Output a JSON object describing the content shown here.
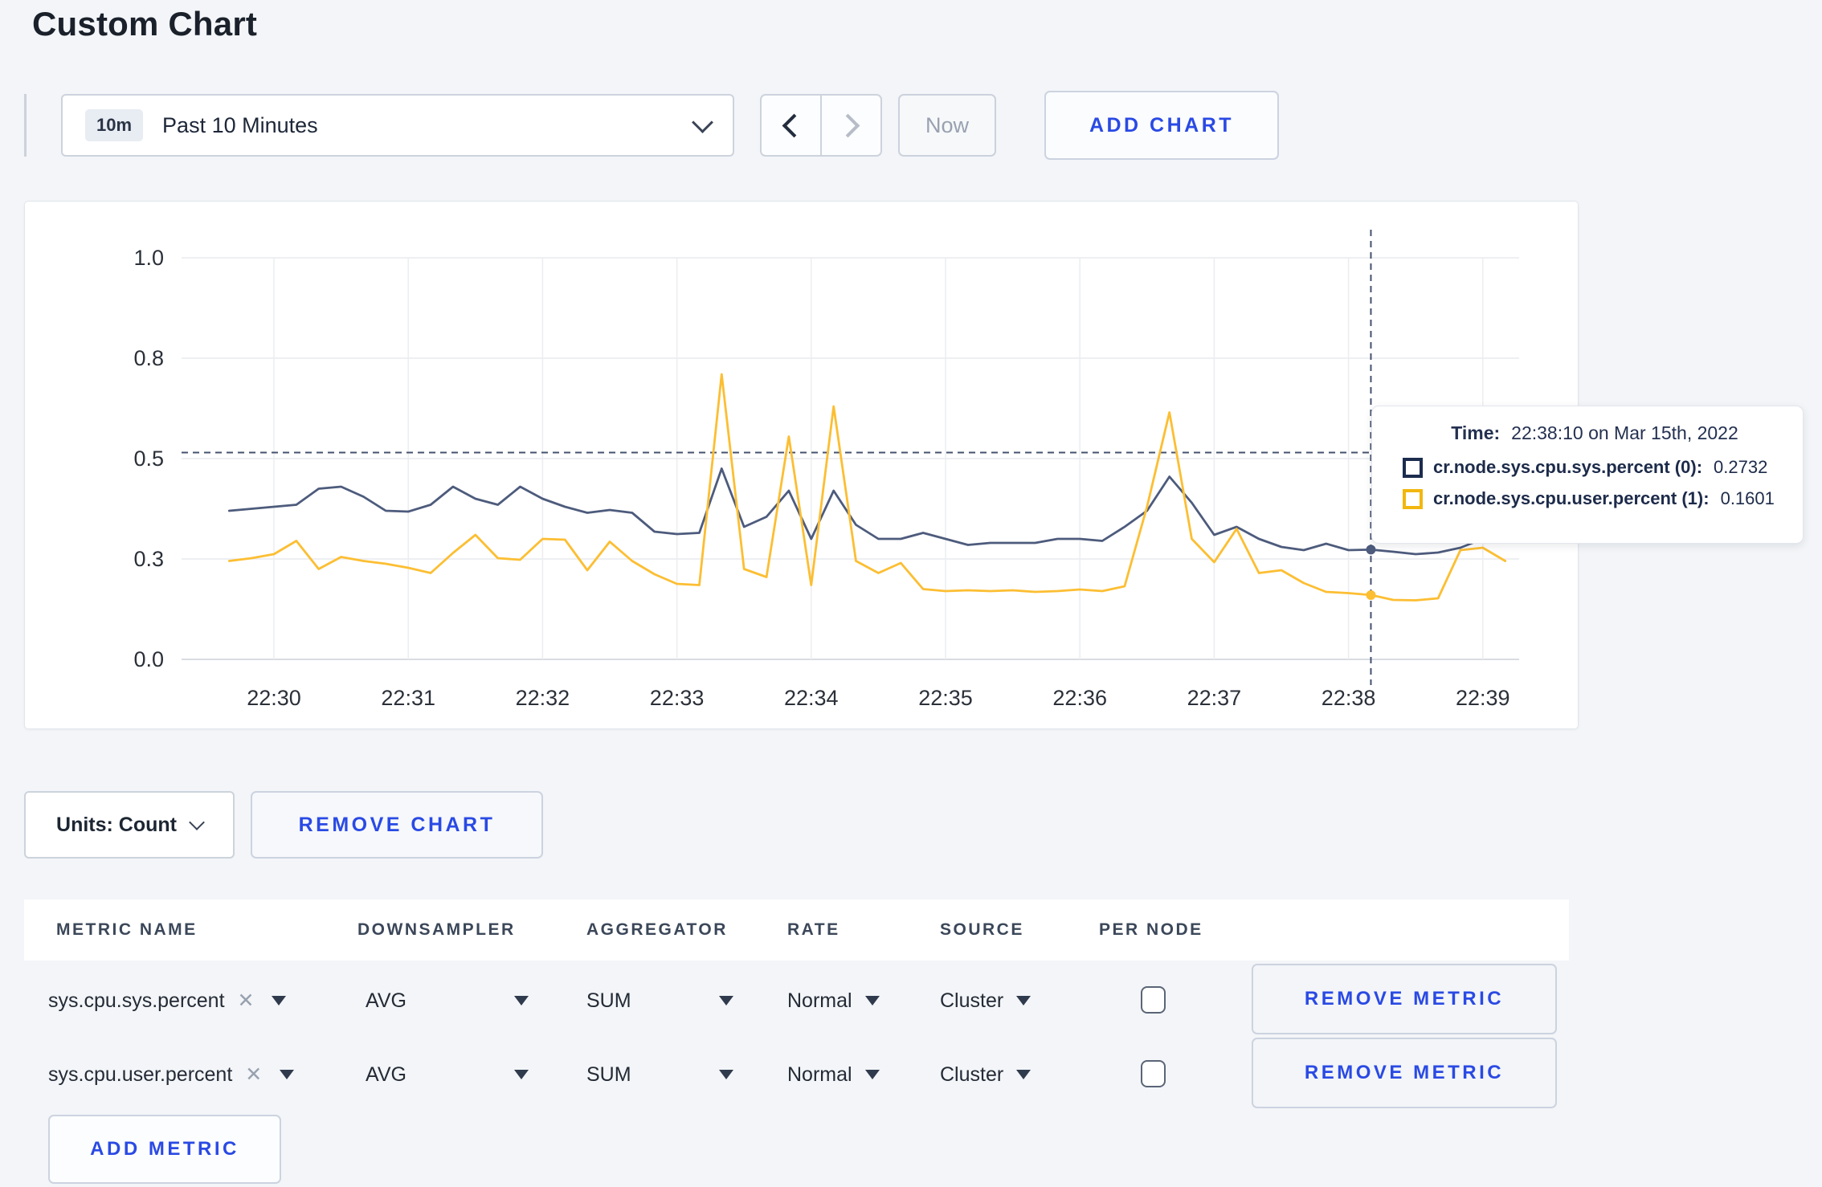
{
  "page": {
    "title": "Custom Chart"
  },
  "toolbar": {
    "range_badge": "10m",
    "range_label": "Past 10 Minutes",
    "now_label": "Now",
    "add_chart_label": "ADD CHART"
  },
  "chart_data": {
    "type": "line",
    "title": "",
    "xlabel": "",
    "ylabel": "",
    "ylim": [
      0,
      1
    ],
    "grid": true,
    "legend_position": "none",
    "y_ticks": [
      {
        "value": 0.0,
        "label": "0.0"
      },
      {
        "value": 0.25,
        "label": "0.3"
      },
      {
        "value": 0.5,
        "label": "0.5"
      },
      {
        "value": 0.75,
        "label": "0.8"
      },
      {
        "value": 1.0,
        "label": "1.0"
      }
    ],
    "x_ticks": [
      "22:30",
      "22:31",
      "22:32",
      "22:33",
      "22:34",
      "22:35",
      "22:36",
      "22:37",
      "22:38",
      "22:39"
    ],
    "x_start": "22:29:40",
    "point_interval_seconds": 10,
    "hover_index": 51,
    "crosshair": {
      "time": "22:38:10",
      "y_value": 0.515
    },
    "series": [
      {
        "name": "cr.node.sys.cpu.sys.percent (0)",
        "color": "#4d5b7c",
        "values": [
          0.37,
          0.375,
          0.38,
          0.385,
          0.425,
          0.43,
          0.405,
          0.37,
          0.368,
          0.385,
          0.43,
          0.4,
          0.385,
          0.43,
          0.4,
          0.38,
          0.365,
          0.372,
          0.365,
          0.318,
          0.312,
          0.315,
          0.475,
          0.33,
          0.355,
          0.42,
          0.3,
          0.42,
          0.335,
          0.3,
          0.3,
          0.315,
          0.3,
          0.285,
          0.29,
          0.29,
          0.29,
          0.3,
          0.3,
          0.295,
          0.33,
          0.37,
          0.455,
          0.39,
          0.31,
          0.33,
          0.3,
          0.28,
          0.272,
          0.288,
          0.272,
          0.2732,
          0.268,
          0.262,
          0.266,
          0.278,
          0.3,
          0.305
        ]
      },
      {
        "name": "cr.node.sys.cpu.user.percent (1)",
        "color": "#fcbe32",
        "values": [
          0.245,
          0.252,
          0.262,
          0.295,
          0.225,
          0.255,
          0.245,
          0.238,
          0.228,
          0.215,
          0.265,
          0.31,
          0.252,
          0.248,
          0.3,
          0.298,
          0.222,
          0.293,
          0.245,
          0.212,
          0.188,
          0.185,
          0.71,
          0.225,
          0.205,
          0.555,
          0.185,
          0.63,
          0.245,
          0.215,
          0.24,
          0.175,
          0.17,
          0.172,
          0.17,
          0.172,
          0.168,
          0.17,
          0.174,
          0.17,
          0.182,
          0.38,
          0.615,
          0.3,
          0.242,
          0.325,
          0.215,
          0.222,
          0.19,
          0.168,
          0.165,
          0.1601,
          0.148,
          0.147,
          0.152,
          0.272,
          0.278,
          0.245
        ]
      }
    ]
  },
  "tooltip": {
    "time_label": "Time:",
    "time_value": "22:38:10 on Mar 15th, 2022",
    "series": [
      {
        "label": "cr.node.sys.cpu.sys.percent (0):",
        "value": "0.2732",
        "color": "#1c2c4e"
      },
      {
        "label": "cr.node.sys.cpu.user.percent (1):",
        "value": "0.1601",
        "color": "#f2b70e"
      }
    ]
  },
  "chart_controls": {
    "units_label": "Units: Count",
    "remove_chart_label": "REMOVE CHART"
  },
  "metrics_table": {
    "headers": [
      "METRIC NAME",
      "DOWNSAMPLER",
      "AGGREGATOR",
      "RATE",
      "SOURCE",
      "PER NODE"
    ],
    "rows": [
      {
        "metric_name": "sys.cpu.sys.percent",
        "downsampler": "AVG",
        "aggregator": "SUM",
        "rate": "Normal",
        "source": "Cluster",
        "per_node_checked": false,
        "remove_label": "REMOVE METRIC"
      },
      {
        "metric_name": "sys.cpu.user.percent",
        "downsampler": "AVG",
        "aggregator": "SUM",
        "rate": "Normal",
        "source": "Cluster",
        "per_node_checked": false,
        "remove_label": "REMOVE METRIC"
      }
    ],
    "add_metric_label": "ADD METRIC"
  }
}
